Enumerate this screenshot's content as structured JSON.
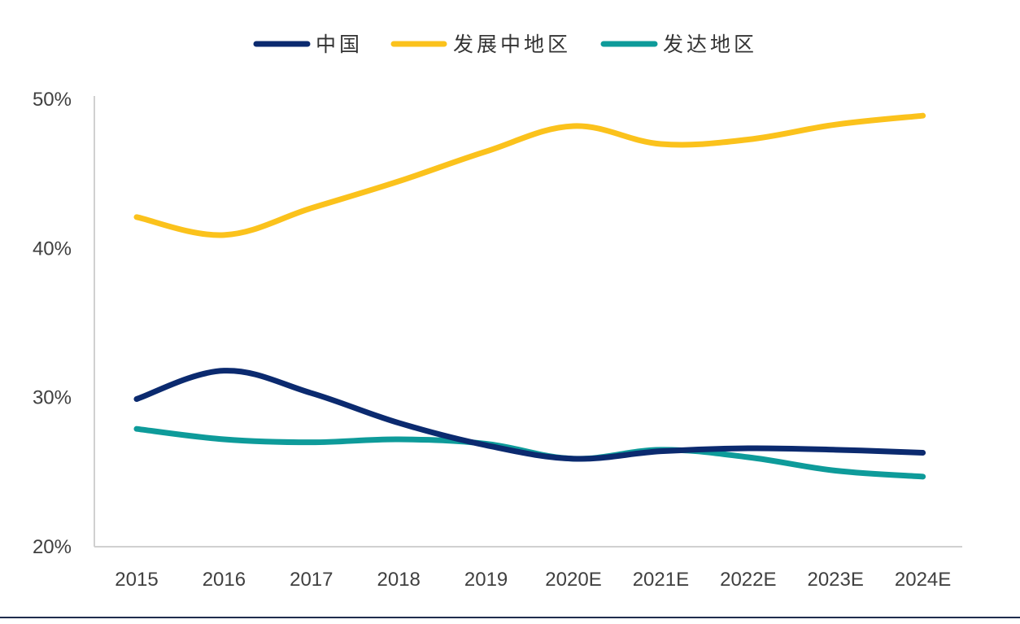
{
  "chart_data": {
    "type": "line",
    "title": "",
    "xlabel": "",
    "ylabel": "",
    "categories": [
      "2015",
      "2016",
      "2017",
      "2018",
      "2019",
      "2020E",
      "2021E",
      "2022E",
      "2023E",
      "2024E"
    ],
    "ylim": [
      0.2,
      0.5
    ],
    "yticks": [
      0.2,
      0.3,
      0.4,
      0.5
    ],
    "ytick_labels": [
      "20%",
      "30%",
      "40%",
      "50%"
    ],
    "grid": false,
    "legend_position": "top-center",
    "series": [
      {
        "name": "中国",
        "color": "#0b2a6f",
        "values": [
          0.299,
          0.318,
          0.303,
          0.283,
          0.268,
          0.259,
          0.264,
          0.266,
          0.265,
          0.263
        ]
      },
      {
        "name": "发展中地区",
        "color": "#fbc21c",
        "values": [
          0.421,
          0.409,
          0.427,
          0.445,
          0.465,
          0.482,
          0.47,
          0.473,
          0.483,
          0.489
        ]
      },
      {
        "name": "发达地区",
        "color": "#0e9b9a",
        "values": [
          0.279,
          0.272,
          0.27,
          0.272,
          0.269,
          0.259,
          0.265,
          0.26,
          0.251,
          0.247
        ]
      }
    ]
  }
}
